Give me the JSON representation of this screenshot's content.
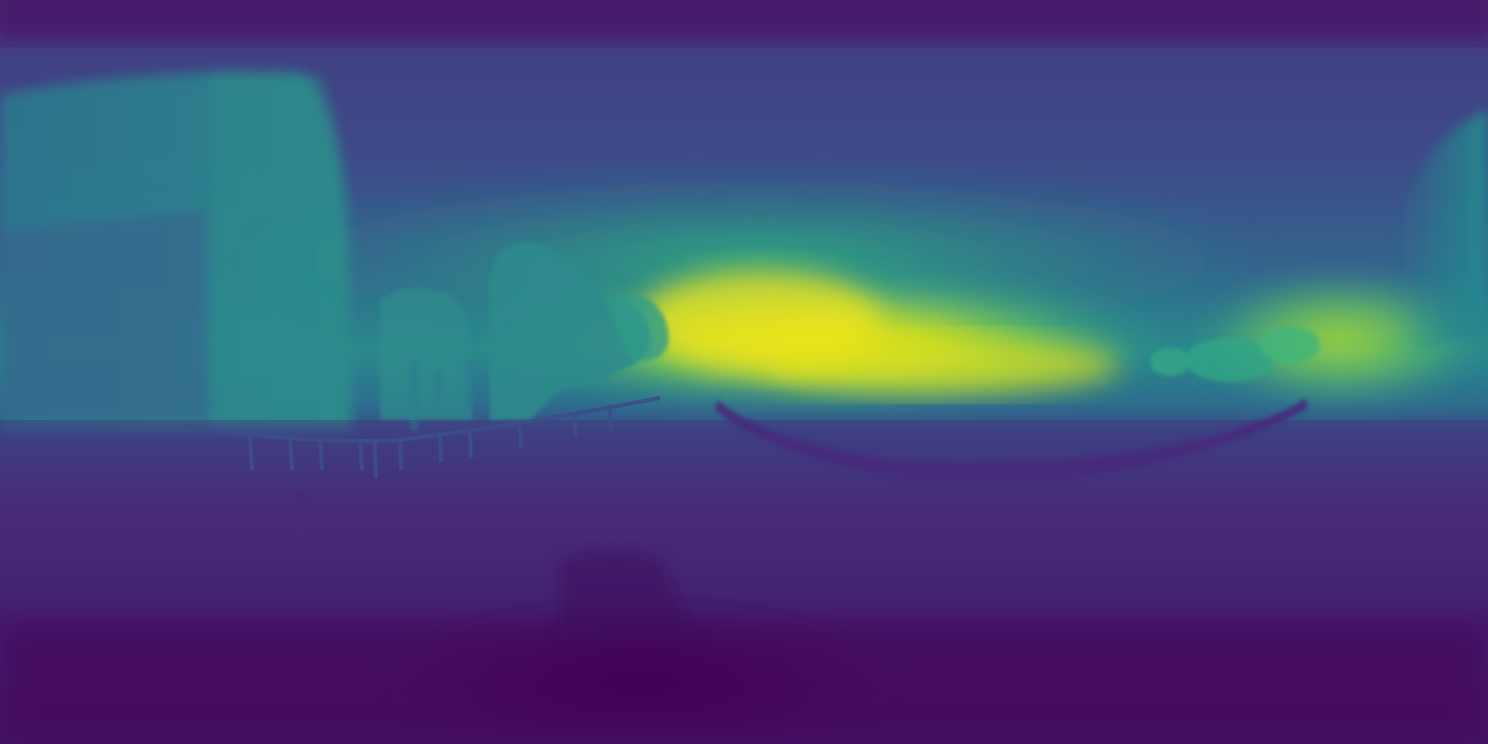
{
  "image": {
    "kind": "depth-map",
    "projection": "equirectangular-panorama",
    "colormap": "viridis",
    "palette": {
      "far": "#fde725",
      "far_mid": "#b5de2b",
      "mid": "#35b779",
      "mid_teal": "#2a9d8f",
      "mid_blue": "#31688e",
      "near_blue": "#3b528b",
      "near_mid": "#472d7b",
      "near": "#440154"
    }
  }
}
